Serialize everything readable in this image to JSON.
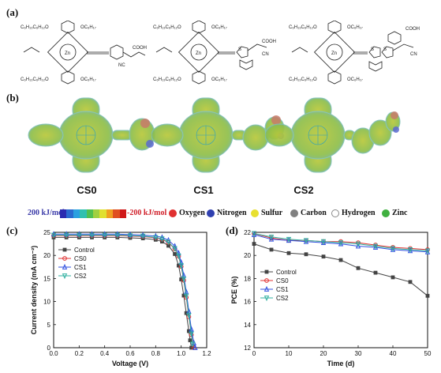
{
  "panels": {
    "a": "(a)",
    "b": "(b)",
    "c": "(c)",
    "d": "(d)"
  },
  "molecules": [
    "CS0",
    "CS1",
    "CS2"
  ],
  "esp_legend": {
    "positive": "200 kJ/mol",
    "negative": "-200 kJ/mol",
    "colorbar": [
      "#2a2ab0",
      "#2a6ad0",
      "#2aa0e0",
      "#30c0b0",
      "#50c050",
      "#a0d040",
      "#e0e030",
      "#f0a020",
      "#e05020",
      "#d01818"
    ]
  },
  "atoms": [
    {
      "name": "Oxygen",
      "color": "#e03030"
    },
    {
      "name": "Nitrogen",
      "color": "#3040b0"
    },
    {
      "name": "Sulfur",
      "color": "#e8e030"
    },
    {
      "name": "Carbon",
      "color": "#808080"
    },
    {
      "name": "Hydrogen",
      "color": "#ffffff"
    },
    {
      "name": "Zinc",
      "color": "#40b040"
    }
  ],
  "chart_data": [
    {
      "type": "line",
      "xlabel": "Voltage (V)",
      "ylabel": "Current density (mA cm⁻²)",
      "xlim": [
        0.0,
        1.2
      ],
      "ylim": [
        0,
        25
      ],
      "xticks": [
        "0.0",
        "0.2",
        "0.4",
        "0.6",
        "0.8",
        "1.0",
        "1.2"
      ],
      "yticks": [
        "0",
        "5",
        "10",
        "15",
        "20",
        "25"
      ],
      "legend_position": "upper-left",
      "series": [
        {
          "name": "Control",
          "color": "#444444",
          "marker": "square",
          "x": [
            0,
            0.1,
            0.2,
            0.3,
            0.4,
            0.5,
            0.6,
            0.7,
            0.8,
            0.85,
            0.9,
            0.95,
            0.98,
            1.0,
            1.02,
            1.04,
            1.06,
            1.07,
            1.08
          ],
          "y": [
            23.9,
            23.9,
            23.9,
            23.9,
            23.9,
            23.9,
            23.8,
            23.7,
            23.4,
            23.0,
            22.1,
            20.3,
            17.8,
            14.8,
            11.3,
            7.5,
            3.6,
            1.6,
            0
          ]
        },
        {
          "name": "CS0",
          "color": "#e03030",
          "marker": "circle",
          "x": [
            0,
            0.1,
            0.2,
            0.3,
            0.4,
            0.5,
            0.6,
            0.7,
            0.8,
            0.85,
            0.9,
            0.95,
            0.98,
            1.0,
            1.02,
            1.04,
            1.06,
            1.08,
            1.1
          ],
          "y": [
            24.3,
            24.3,
            24.3,
            24.3,
            24.3,
            24.3,
            24.2,
            24.1,
            23.8,
            23.5,
            22.8,
            21.4,
            19.8,
            17.6,
            14.6,
            10.9,
            6.7,
            2.8,
            0
          ]
        },
        {
          "name": "CS1",
          "color": "#3050e0",
          "marker": "triangle",
          "x": [
            0,
            0.1,
            0.2,
            0.3,
            0.4,
            0.5,
            0.6,
            0.7,
            0.8,
            0.85,
            0.9,
            0.95,
            0.98,
            1.0,
            1.02,
            1.04,
            1.06,
            1.08,
            1.1,
            1.11
          ],
          "y": [
            24.6,
            24.6,
            24.6,
            24.6,
            24.6,
            24.6,
            24.5,
            24.4,
            24.2,
            23.9,
            23.3,
            22.0,
            20.5,
            18.5,
            15.7,
            12.1,
            7.9,
            4.0,
            1.0,
            0
          ]
        },
        {
          "name": "CS2",
          "color": "#30b0a0",
          "marker": "triangle-down",
          "x": [
            0,
            0.1,
            0.2,
            0.3,
            0.4,
            0.5,
            0.6,
            0.7,
            0.8,
            0.85,
            0.9,
            0.95,
            0.98,
            1.0,
            1.02,
            1.04,
            1.06,
            1.08,
            1.09
          ],
          "y": [
            24.4,
            24.4,
            24.4,
            24.4,
            24.4,
            24.4,
            24.3,
            24.2,
            23.9,
            23.6,
            22.9,
            21.5,
            19.9,
            17.8,
            14.9,
            11.2,
            7.0,
            3.0,
            0.8
          ]
        }
      ]
    },
    {
      "type": "line",
      "xlabel": "Time (d)",
      "ylabel": "PCE (%)",
      "xlim": [
        0,
        50
      ],
      "ylim": [
        12,
        22
      ],
      "xticks": [
        "0",
        "10",
        "20",
        "30",
        "40",
        "50"
      ],
      "yticks": [
        "12",
        "14",
        "16",
        "18",
        "20",
        "22"
      ],
      "legend_position": "lower-left",
      "series": [
        {
          "name": "Control",
          "color": "#444444",
          "marker": "square",
          "x": [
            0,
            5,
            10,
            15,
            20,
            25,
            30,
            35,
            40,
            45,
            50
          ],
          "y": [
            21.0,
            20.5,
            20.2,
            20.1,
            19.9,
            19.6,
            18.9,
            18.5,
            18.1,
            17.7,
            16.5
          ]
        },
        {
          "name": "CS0",
          "color": "#e03030",
          "marker": "circle",
          "x": [
            0,
            5,
            10,
            15,
            20,
            25,
            30,
            35,
            40,
            45,
            50
          ],
          "y": [
            21.9,
            21.5,
            21.3,
            21.3,
            21.2,
            21.2,
            21.1,
            20.9,
            20.7,
            20.6,
            20.5
          ]
        },
        {
          "name": "CS1",
          "color": "#3050e0",
          "marker": "triangle",
          "x": [
            0,
            5,
            10,
            15,
            20,
            25,
            30,
            35,
            40,
            45,
            50
          ],
          "y": [
            21.8,
            21.4,
            21.3,
            21.2,
            21.1,
            21.0,
            20.8,
            20.7,
            20.5,
            20.4,
            20.3
          ]
        },
        {
          "name": "CS2",
          "color": "#30b0a0",
          "marker": "triangle-down",
          "x": [
            0,
            5,
            10,
            15,
            20,
            25,
            30,
            35,
            40,
            45,
            50
          ],
          "y": [
            21.9,
            21.6,
            21.4,
            21.3,
            21.2,
            21.1,
            21.0,
            20.8,
            20.6,
            20.5,
            20.4
          ]
        }
      ]
    }
  ]
}
